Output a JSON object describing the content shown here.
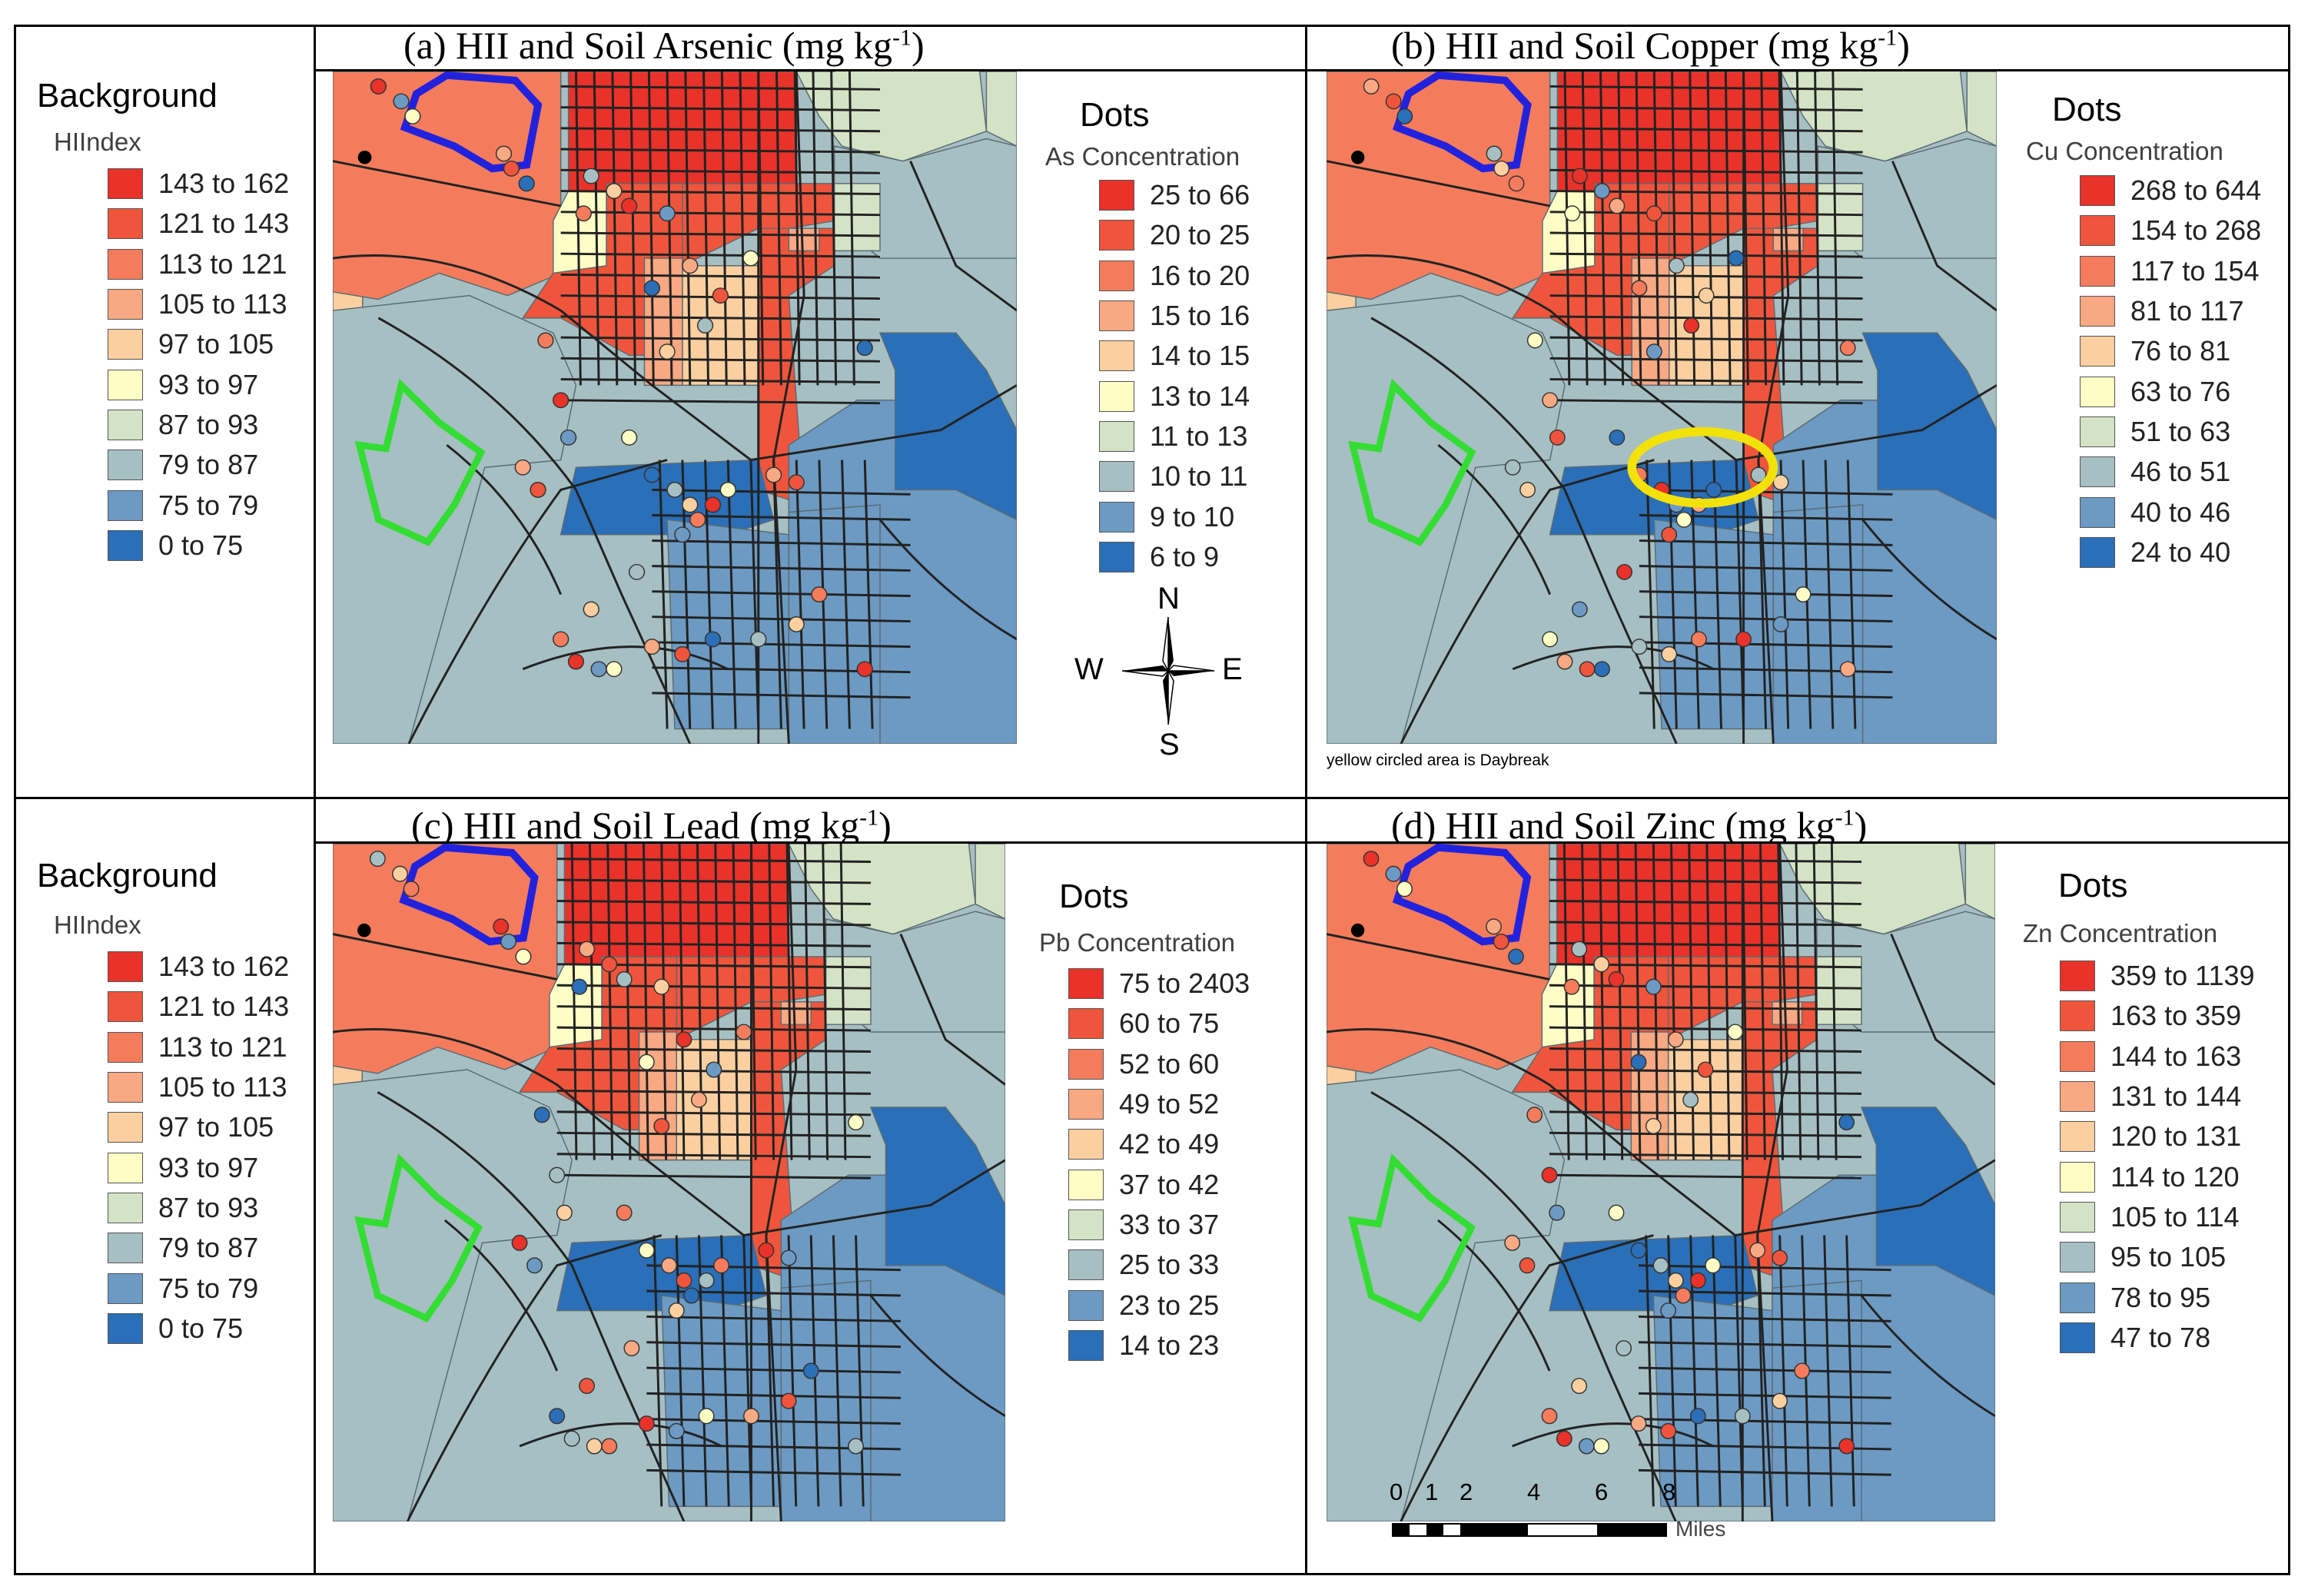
{
  "panels": [
    {
      "id": "a",
      "title_main": "(a) HII and Soil Arsenic (mg kg",
      "title_sup": "-1",
      "title_close": ")",
      "bg_legend": {
        "heading": "Background",
        "field": "HIIndex"
      },
      "dot_legend": {
        "heading": "Dots",
        "field": "As Concentration",
        "classes": [
          "25 to 66",
          "20 to 25",
          "16 to 20",
          "15 to 16",
          "14 to 15",
          "13 to 14",
          "11 to 13",
          "10 to 11",
          "9 to 10",
          "6 to 9"
        ]
      }
    },
    {
      "id": "b",
      "title_main": "(b) HII and Soil Copper (mg kg",
      "title_sup": "-1",
      "title_close": ")",
      "bg_legend": null,
      "dot_legend": {
        "heading": "Dots",
        "field": "Cu Concentration",
        "classes": [
          "268 to 644",
          "154 to 268",
          "117 to 154",
          "81 to 117",
          "76 to 81",
          "63 to 76",
          "51 to 63",
          "46 to 51",
          "40 to 46",
          "24 to 40"
        ]
      },
      "note": "yellow circled area is Daybreak"
    },
    {
      "id": "c",
      "title_main": "(c) HII and Soil Lead (mg kg",
      "title_sup": "-1",
      "title_close": ")",
      "bg_legend": {
        "heading": "Background",
        "field": "HIIndex"
      },
      "dot_legend": {
        "heading": "Dots",
        "field": "Pb Concentration",
        "classes": [
          "75 to 2403",
          "60 to 75",
          "52 to 60",
          "49 to 52",
          "42 to 49",
          "37 to 42",
          "33 to 37",
          "25 to 33",
          "23 to 25",
          "14 to 23"
        ]
      }
    },
    {
      "id": "d",
      "title_main": "(d) HII and Soil Zinc (mg kg",
      "title_sup": "-1",
      "title_close": ")",
      "bg_legend": null,
      "dot_legend": {
        "heading": "Dots",
        "field": "Zn Concentration",
        "classes": [
          "359 to 1139",
          "163 to 359",
          "144 to 163",
          "131 to 144",
          "120 to 131",
          "114 to 120",
          "105 to 114",
          "95 to 105",
          "78 to 95",
          "47 to 78"
        ]
      }
    }
  ],
  "hii_classes": [
    "143 to 162",
    "121 to 143",
    "113 to 121",
    "105 to 113",
    "97 to 105",
    "93 to 97",
    "87 to 93",
    "79 to 87",
    "75 to 79",
    "0 to 75"
  ],
  "class_colors": [
    "#e8322a",
    "#ef553c",
    "#f47c5c",
    "#f8a882",
    "#fbcf9f",
    "#fdfdc5",
    "#d4e3c5",
    "#a6bfc2",
    "#6c9ac3",
    "#2a6fb7"
  ],
  "compass": {
    "n": "N",
    "s": "S",
    "e": "E",
    "w": "W"
  },
  "scale_bar": {
    "ticks": [
      "0",
      "1",
      "2",
      "4",
      "6",
      "8"
    ],
    "unit": "Miles"
  },
  "outline_colors": {
    "blue_area": "#2222dd",
    "green_area": "#33dd33",
    "daybreak_circle": "#f2e20a"
  }
}
